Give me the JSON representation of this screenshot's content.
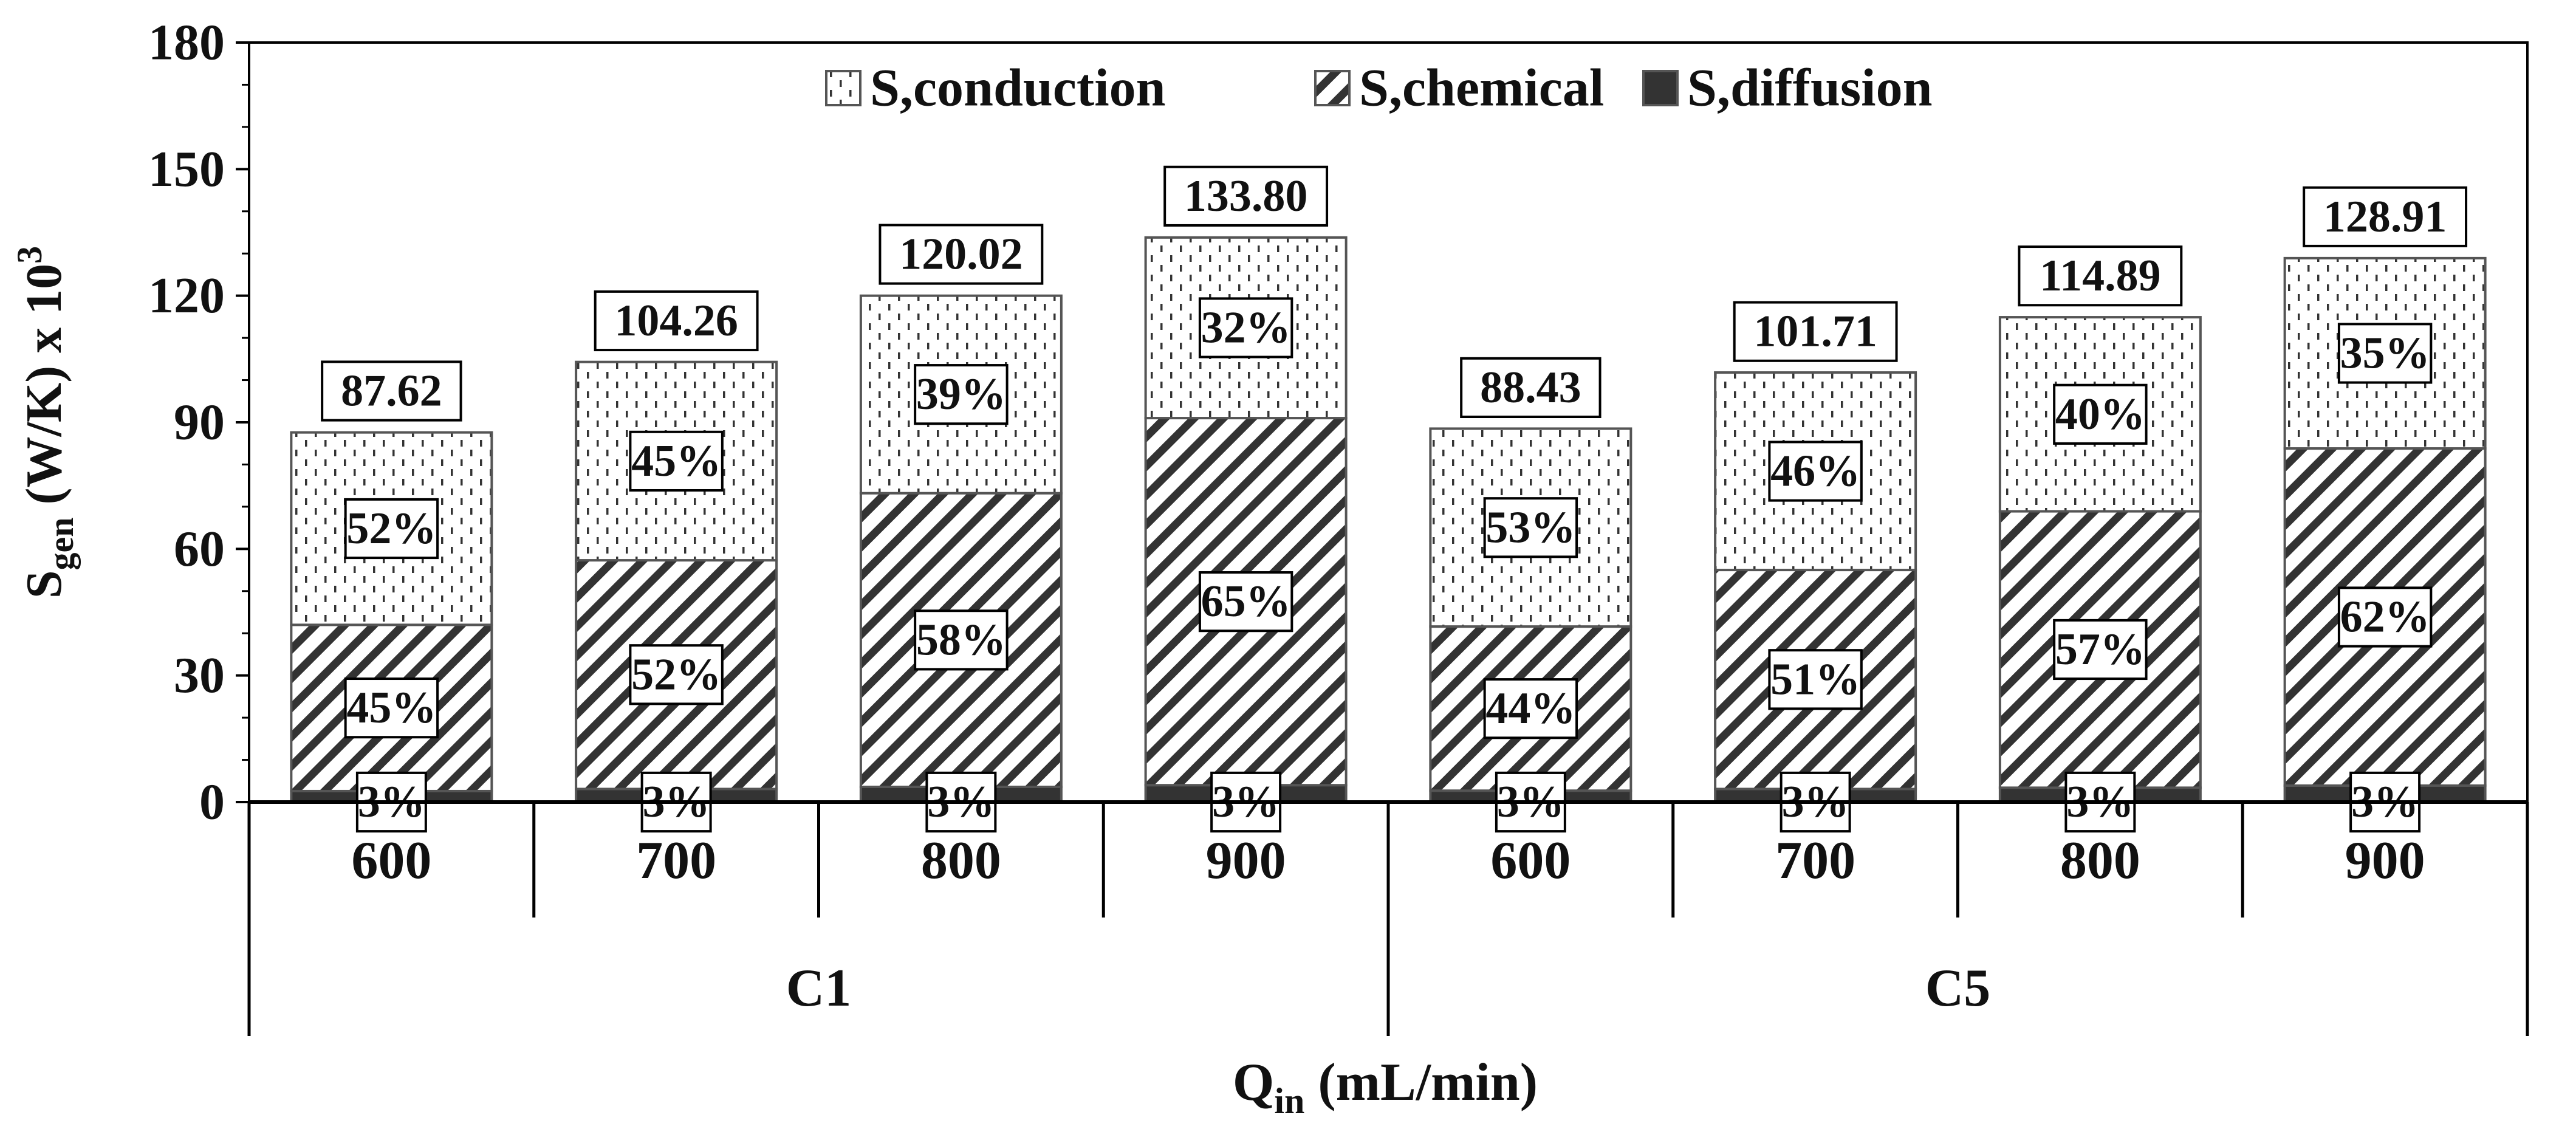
{
  "chart_data": {
    "type": "bar",
    "stacked": true,
    "title": "",
    "ylabel": {
      "main": "S",
      "sub": "gen",
      "rest": " (W/K) x 10",
      "sup": "3"
    },
    "xlabel": {
      "main": "Q",
      "sub": "in",
      "rest": " (mL/min)"
    },
    "ylim": [
      0,
      180
    ],
    "yticks": [
      0,
      30,
      60,
      90,
      120,
      150,
      180
    ],
    "ytick_labels": [
      "0",
      "30",
      "60",
      "90",
      "120",
      "150",
      "180"
    ],
    "groups": [
      {
        "label": "C1",
        "categories": [
          "600",
          "700",
          "800",
          "900"
        ]
      },
      {
        "label": "C5",
        "categories": [
          "600",
          "700",
          "800",
          "900"
        ]
      }
    ],
    "categories": [
      "600",
      "700",
      "800",
      "900",
      "600",
      "700",
      "800",
      "900"
    ],
    "series": [
      {
        "name": "S,diffusion",
        "pattern": "solid",
        "values": [
          2.6,
          3.1,
          3.6,
          4.0,
          2.7,
          3.1,
          3.4,
          3.9
        ],
        "pct_labels": [
          "3%",
          "3%",
          "3%",
          "3%",
          "3%",
          "3%",
          "3%",
          "3%"
        ]
      },
      {
        "name": "S,chemical",
        "pattern": "diagonal",
        "values": [
          39.4,
          54.2,
          69.6,
          87.0,
          38.9,
          51.9,
          65.5,
          79.9
        ],
        "pct_labels": [
          "45%",
          "52%",
          "58%",
          "65%",
          "44%",
          "51%",
          "57%",
          "62%"
        ]
      },
      {
        "name": "S,conduction",
        "pattern": "dots",
        "values": [
          45.6,
          47.0,
          46.8,
          42.8,
          46.9,
          46.8,
          46.0,
          45.1
        ],
        "pct_labels": [
          "52%",
          "45%",
          "39%",
          "32%",
          "53%",
          "46%",
          "40%",
          "35%"
        ]
      }
    ],
    "totals": [
      87.62,
      104.26,
      120.02,
      133.8,
      88.43,
      101.71,
      114.89,
      128.91
    ],
    "total_labels": [
      "87.62",
      "104.26",
      "120.02",
      "133.80",
      "88.43",
      "101.71",
      "114.89",
      "128.91"
    ],
    "legend": {
      "position": "top-center",
      "order": [
        "S,conduction",
        "S,chemical",
        "S,diffusion"
      ]
    },
    "grid": false
  }
}
